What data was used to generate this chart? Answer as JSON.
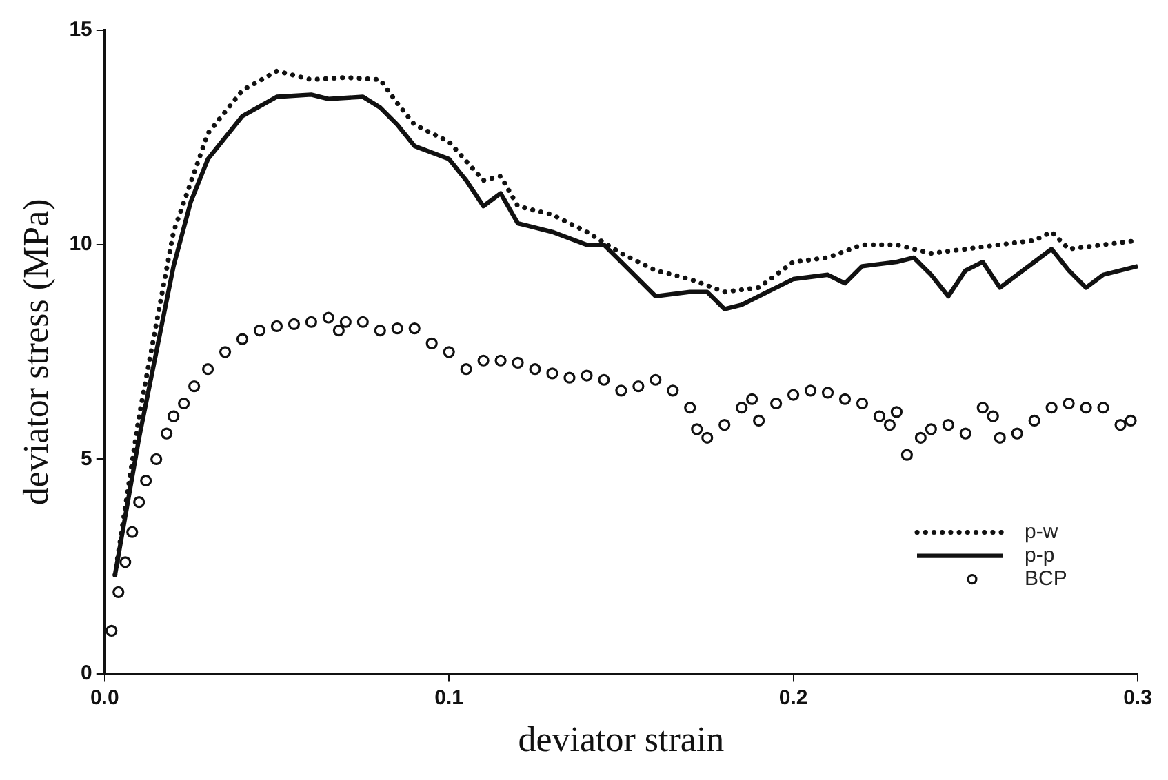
{
  "chart_data": {
    "type": "line",
    "xlabel": "deviator strain",
    "ylabel": "deviator stress (MPa)",
    "xlim": [
      0,
      0.3
    ],
    "xticks": [
      {
        "value": 0,
        "label": "0.0"
      },
      0.1,
      0.2,
      0.3
    ],
    "ylim": [
      0,
      15
    ],
    "yticks": [
      0,
      5,
      10,
      15
    ],
    "grid": false,
    "legend": "bottom right",
    "series": [
      {
        "name": "p-w",
        "color": "#111111",
        "line_style": "dotted",
        "marker": "none",
        "x": [
          0.003,
          0.01,
          0.02,
          0.03,
          0.04,
          0.05,
          0.06,
          0.07,
          0.08,
          0.085,
          0.09,
          0.1,
          0.11,
          0.115,
          0.12,
          0.13,
          0.14,
          0.15,
          0.16,
          0.17,
          0.18,
          0.19,
          0.2,
          0.21,
          0.22,
          0.23,
          0.24,
          0.25,
          0.26,
          0.27,
          0.275,
          0.28,
          0.29,
          0.3
        ],
        "values": [
          2.3,
          6,
          10.3,
          12.6,
          13.6,
          14.05,
          13.85,
          13.9,
          13.85,
          13.3,
          12.8,
          12.4,
          11.5,
          11.6,
          10.9,
          10.7,
          10.3,
          9.8,
          9.4,
          9.2,
          8.9,
          9,
          9.6,
          9.7,
          10,
          10,
          9.8,
          9.9,
          10,
          10.1,
          10.3,
          9.9,
          10,
          10.1
        ]
      },
      {
        "name": "p-p",
        "color": "#111111",
        "line_style": "solid",
        "marker": "none",
        "x": [
          0.003,
          0.01,
          0.02,
          0.025,
          0.03,
          0.04,
          0.05,
          0.06,
          0.065,
          0.075,
          0.08,
          0.085,
          0.09,
          0.1,
          0.105,
          0.11,
          0.115,
          0.12,
          0.13,
          0.14,
          0.145,
          0.15,
          0.16,
          0.17,
          0.175,
          0.18,
          0.185,
          0.19,
          0.2,
          0.21,
          0.215,
          0.22,
          0.23,
          0.235,
          0.24,
          0.245,
          0.25,
          0.255,
          0.26,
          0.27,
          0.275,
          0.28,
          0.285,
          0.29,
          0.3
        ],
        "values": [
          2.3,
          5.5,
          9.5,
          11,
          12,
          13,
          13.45,
          13.5,
          13.4,
          13.45,
          13.2,
          12.8,
          12.3,
          12,
          11.5,
          10.9,
          11.2,
          10.5,
          10.3,
          10,
          10,
          9.6,
          8.8,
          8.9,
          8.9,
          8.5,
          8.6,
          8.8,
          9.2,
          9.3,
          9.1,
          9.5,
          9.6,
          9.7,
          9.3,
          8.8,
          9.4,
          9.6,
          9,
          9.6,
          9.9,
          9.4,
          9,
          9.3,
          9.5
        ]
      },
      {
        "name": "BCP",
        "color": "#111111",
        "type": "scatter",
        "marker": "circle",
        "x": [
          0.002,
          0.004,
          0.006,
          0.008,
          0.01,
          0.012,
          0.015,
          0.018,
          0.02,
          0.023,
          0.026,
          0.03,
          0.035,
          0.04,
          0.045,
          0.05,
          0.055,
          0.06,
          0.065,
          0.068,
          0.07,
          0.075,
          0.08,
          0.085,
          0.09,
          0.095,
          0.1,
          0.105,
          0.11,
          0.115,
          0.12,
          0.125,
          0.13,
          0.135,
          0.14,
          0.145,
          0.15,
          0.155,
          0.16,
          0.165,
          0.17,
          0.172,
          0.175,
          0.18,
          0.185,
          0.188,
          0.19,
          0.195,
          0.2,
          0.205,
          0.21,
          0.215,
          0.22,
          0.225,
          0.228,
          0.23,
          0.233,
          0.237,
          0.24,
          0.245,
          0.25,
          0.255,
          0.258,
          0.26,
          0.265,
          0.27,
          0.275,
          0.28,
          0.285,
          0.29,
          0.295,
          0.298
        ],
        "values": [
          1,
          1.9,
          2.6,
          3.3,
          4,
          4.5,
          5,
          5.6,
          6,
          6.3,
          6.7,
          7.1,
          7.5,
          7.8,
          8,
          8.1,
          8.15,
          8.2,
          8.3,
          8,
          8.2,
          8.2,
          8,
          8.05,
          8.05,
          7.7,
          7.5,
          7.1,
          7.3,
          7.3,
          7.25,
          7.1,
          7,
          6.9,
          6.95,
          6.85,
          6.6,
          6.7,
          6.85,
          6.6,
          6.2,
          5.7,
          5.5,
          5.8,
          6.2,
          6.4,
          5.9,
          6.3,
          6.5,
          6.6,
          6.55,
          6.4,
          6.3,
          6,
          5.8,
          6.1,
          5.1,
          5.5,
          5.7,
          5.8,
          5.6,
          6.2,
          6,
          5.5,
          5.6,
          5.9,
          6.2,
          6.3,
          6.2,
          6.2,
          5.8,
          5.9
        ]
      }
    ]
  }
}
